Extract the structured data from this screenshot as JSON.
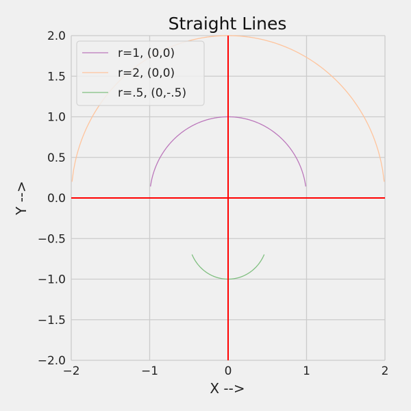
{
  "chart_data": {
    "type": "line",
    "title": "Straight Lines",
    "xlabel": "X -->",
    "ylabel": "Y -->",
    "xlim": [
      -2,
      2
    ],
    "ylim": [
      -2,
      2
    ],
    "xticks": [
      -2,
      -1,
      0,
      1,
      2
    ],
    "yticks": [
      -2.0,
      -1.5,
      -1.0,
      -0.5,
      0.0,
      0.5,
      1.0,
      1.5,
      2.0
    ],
    "xtick_labels": [
      "−2",
      "−1",
      "0",
      "1",
      "2"
    ],
    "ytick_labels": [
      "−2.0",
      "−1.5",
      "−1.0",
      "−0.5",
      "0.0",
      "0.5",
      "1.0",
      "1.5",
      "2.0"
    ],
    "grid": true,
    "legend_position": "top-left",
    "background_color": "#f0f0f0",
    "grid_color": "#cbcbcb",
    "series": [
      {
        "name": "r=1, (0,0)",
        "color": "#bb77bb",
        "shape": "upper-semicircle",
        "center": [
          0,
          0
        ],
        "radius": 1,
        "x_range": [
          -0.99,
          0.99
        ]
      },
      {
        "name": "r=2, (0,0)",
        "color": "#ffc49c",
        "shape": "upper-semicircle",
        "center": [
          0,
          0
        ],
        "radius": 2,
        "x_range": [
          -1.99,
          1.99
        ]
      },
      {
        "name": "r=.5, (0,-.5)",
        "color": "#7fbf7f",
        "shape": "lower-semicircle",
        "center": [
          0,
          -0.5
        ],
        "radius": 0.5,
        "x_range": [
          -0.46,
          0.46
        ]
      }
    ],
    "reference_lines": [
      {
        "orientation": "horizontal",
        "value": 0,
        "color": "#ff0000"
      },
      {
        "orientation": "vertical",
        "value": 0,
        "color": "#ff0000"
      }
    ]
  }
}
